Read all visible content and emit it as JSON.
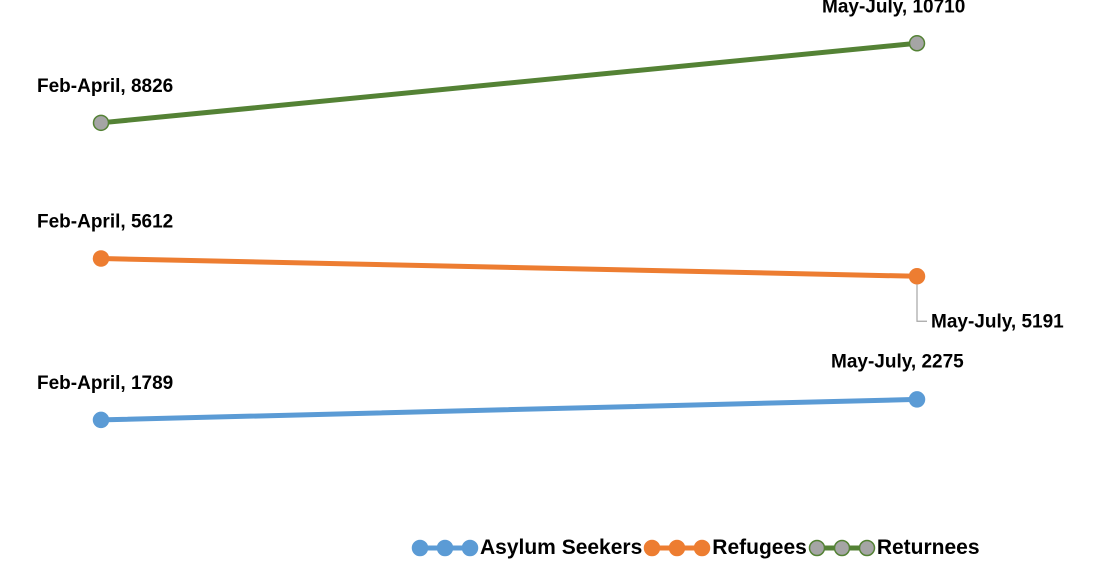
{
  "chart_data": {
    "type": "line",
    "categories": [
      "Feb-April",
      "May-July"
    ],
    "series": [
      {
        "name": "Asylum Seekers",
        "values": [
          1789,
          2275
        ],
        "color": "#5b9bd5",
        "marker_color": "#5b9bd5"
      },
      {
        "name": "Refugees",
        "values": [
          5612,
          5191
        ],
        "color": "#ed7d31",
        "marker_color": "#ed7d31"
      },
      {
        "name": "Returnees",
        "values": [
          8826,
          10710
        ],
        "color": "#548235",
        "marker_color": "#a5a5a5"
      }
    ],
    "data_labels": [
      [
        "Feb-April, 1789",
        "May-July, 2275"
      ],
      [
        "Feb-April, 5612",
        "May-July, 5191"
      ],
      [
        "Feb-April, 8826",
        "May-July, 10710"
      ]
    ],
    "title": "",
    "xlabel": "",
    "ylabel": "",
    "axes_visible": false,
    "grid": false,
    "legend_position": "bottom"
  }
}
